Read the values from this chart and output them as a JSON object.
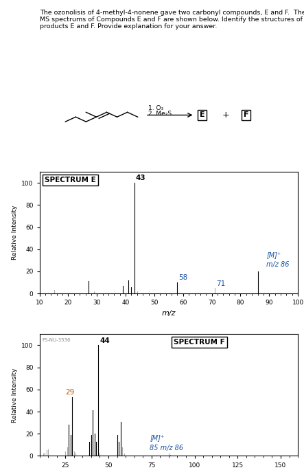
{
  "title_text": "The ozonolisis of 4-methyl-4-nonene gave two carbonyl compounds, E and F.  The\nMS spectrums of Compounds E and F are shown below. Identify the structures of\nproducts E and F. Provide explanation for your answer.",
  "spectrum_e": {
    "label": "SPECTRUM E",
    "peaks": [
      {
        "mz": 15,
        "intensity": 3
      },
      {
        "mz": 27,
        "intensity": 11
      },
      {
        "mz": 29,
        "intensity": 2
      },
      {
        "mz": 39,
        "intensity": 7
      },
      {
        "mz": 41,
        "intensity": 12
      },
      {
        "mz": 42,
        "intensity": 6
      },
      {
        "mz": 43,
        "intensity": 100
      },
      {
        "mz": 44,
        "intensity": 2
      },
      {
        "mz": 58,
        "intensity": 10
      },
      {
        "mz": 71,
        "intensity": 5
      },
      {
        "mz": 86,
        "intensity": 20
      }
    ],
    "labeled_peaks": [
      {
        "mz": 43,
        "label": "43",
        "color": "#000000"
      },
      {
        "mz": 58,
        "label": "58",
        "color": "#1a52a0"
      },
      {
        "mz": 71,
        "label": "71",
        "color": "#1a52a0"
      },
      {
        "mz": 86,
        "label_line1": "[M]⁺",
        "label_line2": "m/z 86",
        "color": "#1a52a0"
      }
    ],
    "xmin": 10,
    "xmax": 100,
    "xticks": [
      10,
      20,
      30,
      40,
      50,
      60,
      70,
      80,
      90,
      100
    ],
    "xlabel": "m/z",
    "ylabel": "Relative Intensity",
    "ymin": 0,
    "ymax": 110,
    "yticks": [
      0,
      20,
      40,
      60,
      80,
      100
    ]
  },
  "spectrum_f": {
    "label": "SPECTRUM F",
    "watermark": "FS-NU-3536",
    "peaks": [
      {
        "mz": 12,
        "intensity": 2
      },
      {
        "mz": 13,
        "intensity": 3
      },
      {
        "mz": 14,
        "intensity": 5
      },
      {
        "mz": 15,
        "intensity": 6
      },
      {
        "mz": 25,
        "intensity": 4
      },
      {
        "mz": 26,
        "intensity": 8
      },
      {
        "mz": 27,
        "intensity": 28
      },
      {
        "mz": 28,
        "intensity": 19
      },
      {
        "mz": 29,
        "intensity": 53
      },
      {
        "mz": 30,
        "intensity": 4
      },
      {
        "mz": 31,
        "intensity": 3
      },
      {
        "mz": 39,
        "intensity": 13
      },
      {
        "mz": 40,
        "intensity": 19
      },
      {
        "mz": 41,
        "intensity": 41
      },
      {
        "mz": 42,
        "intensity": 20
      },
      {
        "mz": 43,
        "intensity": 13
      },
      {
        "mz": 44,
        "intensity": 100
      },
      {
        "mz": 45,
        "intensity": 3
      },
      {
        "mz": 55,
        "intensity": 19
      },
      {
        "mz": 56,
        "intensity": 13
      },
      {
        "mz": 57,
        "intensity": 31
      },
      {
        "mz": 58,
        "intensity": 8
      },
      {
        "mz": 59,
        "intensity": 2
      },
      {
        "mz": 85,
        "intensity": 2
      },
      {
        "mz": 86,
        "intensity": 1
      }
    ],
    "labeled_peaks": [
      {
        "mz": 29,
        "label": "29",
        "color": "#c05000"
      },
      {
        "mz": 44,
        "label": "44",
        "color": "#000000"
      },
      {
        "mz": 86,
        "label_line1": "[M]⁺",
        "label_line2": "85 m/z 86",
        "color": "#1a52a0"
      }
    ],
    "xmin": 10,
    "xmax": 160,
    "xticks": [
      25,
      50,
      75,
      100,
      125,
      150
    ],
    "xlabel": "m/z",
    "ylabel": "Relative Intensity",
    "ymin": 0,
    "ymax": 110,
    "yticks": [
      0,
      20,
      40,
      60,
      80,
      100
    ]
  }
}
